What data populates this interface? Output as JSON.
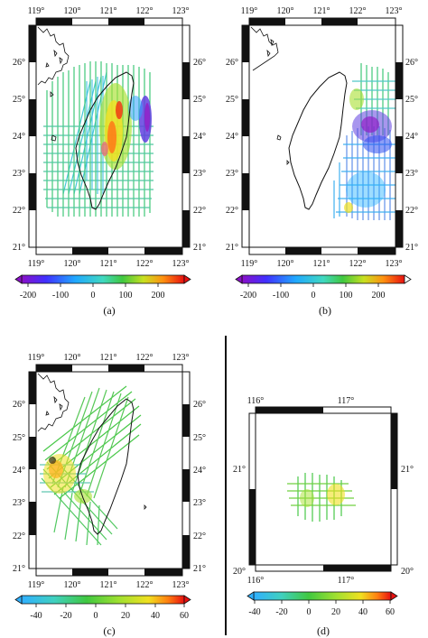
{
  "panels": [
    {
      "id": "a",
      "label": "(a)",
      "lon_labels": [
        "119°",
        "120°",
        "121°",
        "122°",
        "123°"
      ],
      "lat_labels": [
        "21°",
        "22°",
        "23°",
        "24°",
        "25°",
        "26°"
      ],
      "colorbar": {
        "ticks": [
          "-200",
          "-100",
          "0",
          "100",
          "200"
        ],
        "min": -250,
        "max": 250
      }
    },
    {
      "id": "b",
      "label": "(b)",
      "lon_labels": [
        "119°",
        "120°",
        "121°",
        "122°",
        "123°"
      ],
      "lat_labels": [
        "21°",
        "22°",
        "23°",
        "24°",
        "25°",
        "26°"
      ],
      "colorbar": {
        "ticks": [
          "-200",
          "-100",
          "0",
          "100",
          "200"
        ],
        "min": -250,
        "max": 250
      }
    },
    {
      "id": "c",
      "label": "(c)",
      "lon_labels": [
        "119°",
        "120°",
        "121°",
        "122°",
        "123°"
      ],
      "lat_labels": [
        "21°",
        "22°",
        "23°",
        "24°",
        "25°",
        "26°"
      ],
      "colorbar": {
        "ticks": [
          "-40",
          "-20",
          "0",
          "20",
          "40",
          "60"
        ],
        "min": -50,
        "max": 60
      }
    },
    {
      "id": "d",
      "label": "(d)",
      "lon_labels": [
        "116°",
        "117°"
      ],
      "lat_labels": [
        "20°",
        "21°"
      ],
      "colorbar": {
        "ticks": [
          "-40",
          "-20",
          "0",
          "20",
          "40",
          "60"
        ],
        "min": -50,
        "max": 60
      }
    }
  ],
  "colors": {
    "frame": "#111111",
    "ramp": [
      "#a020f0",
      "#3040ff",
      "#28b4ff",
      "#44d06a",
      "#a8e030",
      "#f0e020",
      "#ff8010",
      "#f02010"
    ]
  }
}
